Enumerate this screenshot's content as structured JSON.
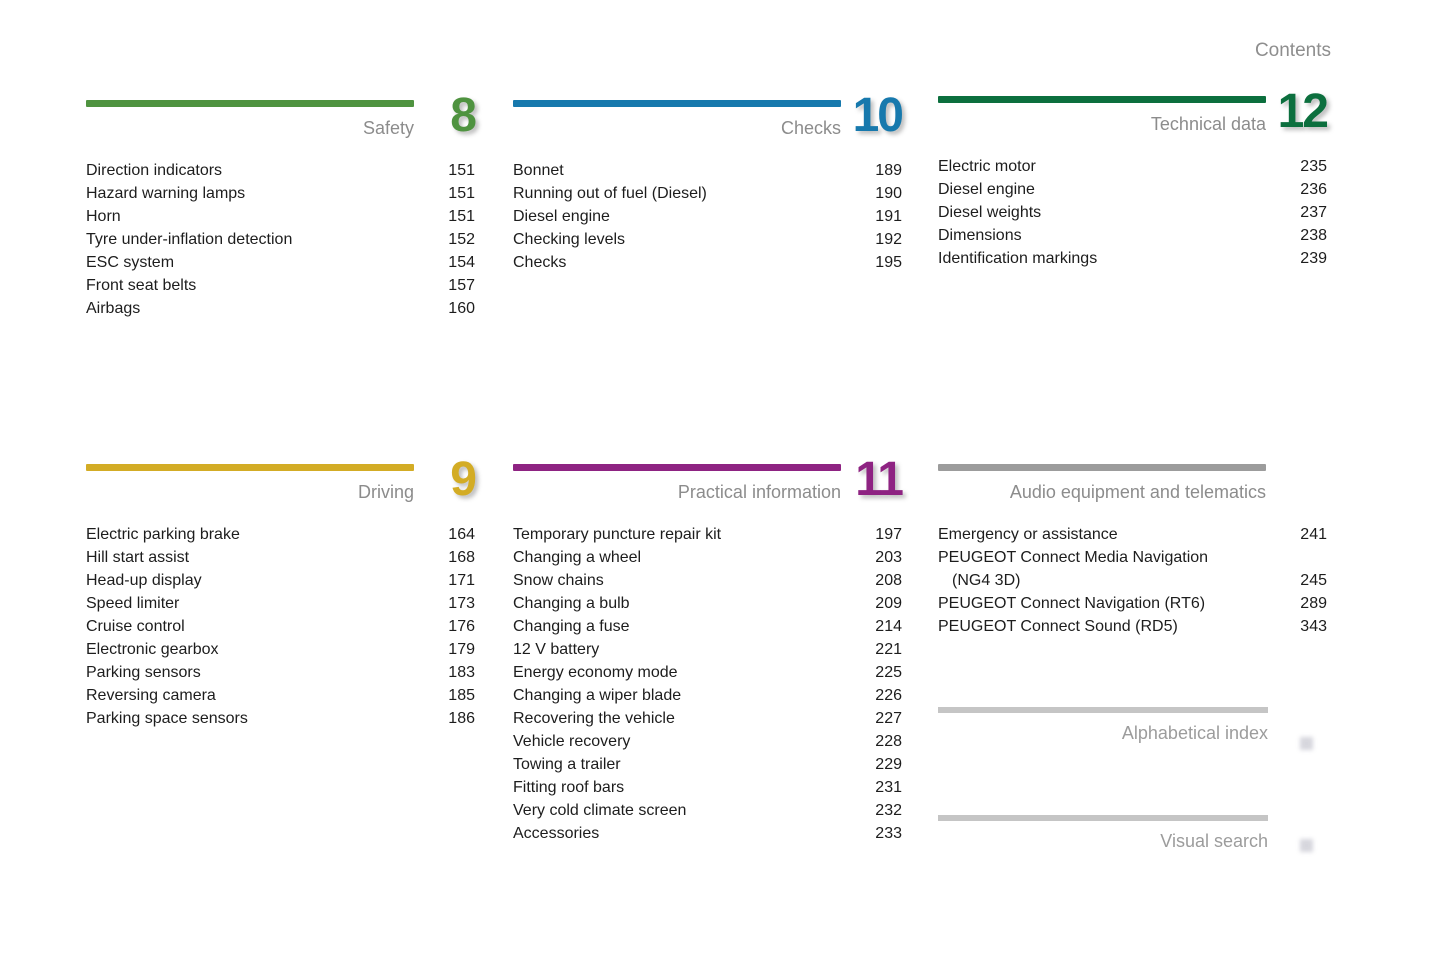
{
  "page": {
    "header_label": "Contents"
  },
  "colors": {
    "safety_green": "#4f9340",
    "checks_blue": "#1779ad",
    "technical_dark_green": "#0c6f3e",
    "driving_gold": "#d3ac25",
    "practical_purple": "#8e2382",
    "audio_gray": "#9c9c9c",
    "index_bar_gray": "#c5c5c5",
    "title_gray": "#8c8c8c",
    "item_text": "#1d1d1d"
  },
  "sections": [
    {
      "id": "safety",
      "title": "Safety",
      "number": "8",
      "color": "#4f9340",
      "items": [
        {
          "label": "Direction indicators",
          "page": "151"
        },
        {
          "label": "Hazard warning lamps",
          "page": "151"
        },
        {
          "label": "Horn",
          "page": "151"
        },
        {
          "label": "Tyre under-inflation detection",
          "page": "152"
        },
        {
          "label": "ESC system",
          "page": "154"
        },
        {
          "label": "Front seat belts",
          "page": "157"
        },
        {
          "label": "Airbags",
          "page": "160"
        }
      ]
    },
    {
      "id": "checks",
      "title": "Checks",
      "number": "10",
      "color": "#1779ad",
      "items": [
        {
          "label": "Bonnet",
          "page": "189"
        },
        {
          "label": "Running out of fuel (Diesel)",
          "page": "190"
        },
        {
          "label": "Diesel engine",
          "page": "191"
        },
        {
          "label": "Checking levels",
          "page": "192"
        },
        {
          "label": "Checks",
          "page": "195"
        }
      ]
    },
    {
      "id": "technical-data",
      "title": "Technical data",
      "number": "12",
      "color": "#0c6f3e",
      "items": [
        {
          "label": "Electric motor",
          "page": "235"
        },
        {
          "label": "Diesel engine",
          "page": "236"
        },
        {
          "label": "Diesel weights",
          "page": "237"
        },
        {
          "label": "Dimensions",
          "page": "238"
        },
        {
          "label": "Identification markings",
          "page": "239"
        }
      ]
    },
    {
      "id": "driving",
      "title": "Driving",
      "number": "9",
      "color": "#d3ac25",
      "items": [
        {
          "label": "Electric parking brake",
          "page": "164"
        },
        {
          "label": "Hill start assist",
          "page": "168"
        },
        {
          "label": "Head-up display",
          "page": "171"
        },
        {
          "label": "Speed limiter",
          "page": "173"
        },
        {
          "label": "Cruise control",
          "page": "176"
        },
        {
          "label": "Electronic gearbox",
          "page": "179"
        },
        {
          "label": "Parking sensors",
          "page": "183"
        },
        {
          "label": "Reversing camera",
          "page": "185"
        },
        {
          "label": "Parking space sensors",
          "page": "186"
        }
      ]
    },
    {
      "id": "practical-information",
      "title": "Practical information",
      "number": "11",
      "color": "#8e2382",
      "items": [
        {
          "label": "Temporary puncture repair kit",
          "page": "197"
        },
        {
          "label": "Changing a wheel",
          "page": "203"
        },
        {
          "label": "Snow chains",
          "page": "208"
        },
        {
          "label": "Changing a bulb",
          "page": "209"
        },
        {
          "label": "Changing a fuse",
          "page": "214"
        },
        {
          "label": "12 V battery",
          "page": "221"
        },
        {
          "label": "Energy economy mode",
          "page": "225"
        },
        {
          "label": "Changing a wiper blade",
          "page": "226"
        },
        {
          "label": "Recovering the vehicle",
          "page": "227"
        },
        {
          "label": "Vehicle recovery",
          "page": "228"
        },
        {
          "label": "Towing a trailer",
          "page": "229"
        },
        {
          "label": "Fitting roof bars",
          "page": "231"
        },
        {
          "label": "Very cold climate screen",
          "page": "232"
        },
        {
          "label": "Accessories",
          "page": "233"
        }
      ]
    },
    {
      "id": "audio-equipment-and-telematics",
      "title": "Audio equipment and telematics",
      "number": "",
      "color": "#9c9c9c",
      "items": [
        {
          "label": "Emergency or assistance",
          "page": "241"
        },
        {
          "label": "PEUGEOT Connect Media Navigation",
          "label2": "(NG4 3D)",
          "page": "245"
        },
        {
          "label": "PEUGEOT Connect Navigation (RT6)",
          "page": "289"
        },
        {
          "label": "PEUGEOT Connect Sound (RD5)",
          "page": "343"
        }
      ]
    }
  ],
  "index_links": [
    {
      "title": "Alphabetical index"
    },
    {
      "title": "Visual search"
    }
  ]
}
